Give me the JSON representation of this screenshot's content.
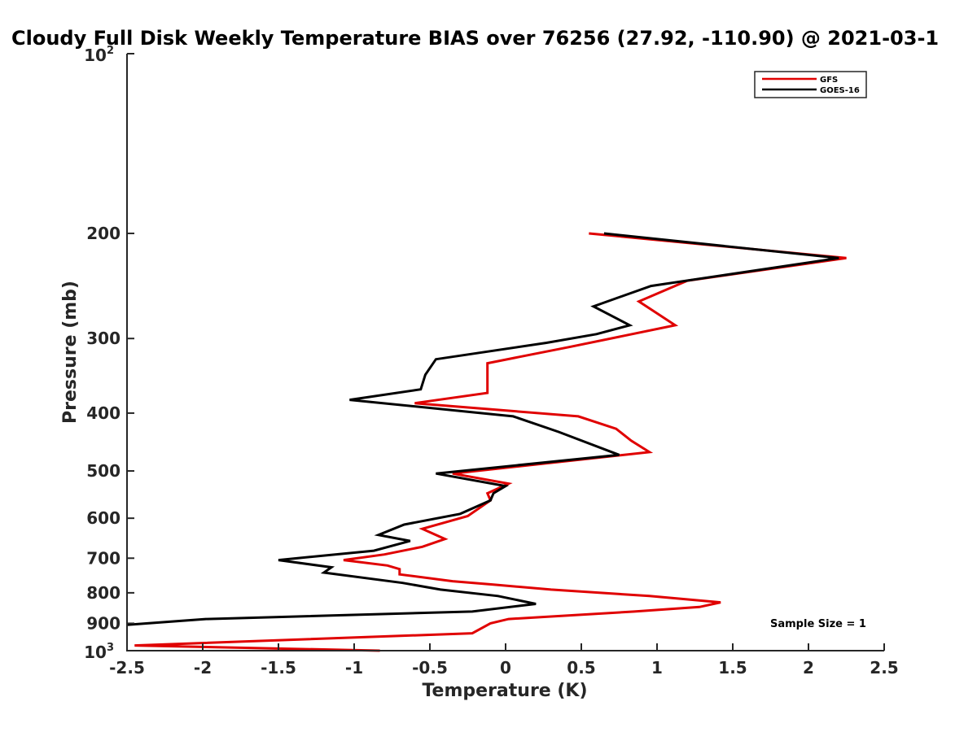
{
  "chart_data": {
    "type": "line",
    "title": "Cloudy Full Disk Weekly Temperature BIAS over 76256 (27.92, -110.90) @ 2021-03-1",
    "xlabel": "Temperature (K)",
    "ylabel": "Pressure (mb)",
    "xlim": [
      -2.5,
      2.5
    ],
    "ylim": [
      100,
      1000
    ],
    "yscale": "log",
    "yreversed": true,
    "xticks": [
      -2.5,
      -2,
      -1.5,
      -1,
      -0.5,
      0,
      0.5,
      1,
      1.5,
      2,
      2.5
    ],
    "xtick_labels": [
      "-2.5",
      "-2",
      "-1.5",
      "-1",
      "-0.5",
      "0",
      "0.5",
      "1",
      "1.5",
      "2",
      "2.5"
    ],
    "yticks": [
      200,
      300,
      400,
      500,
      600,
      700,
      800,
      900
    ],
    "ytick_labels": [
      "200",
      "300",
      "400",
      "500",
      "600",
      "700",
      "800",
      "900"
    ],
    "ytick_top": {
      "base": "10",
      "exp": "2"
    },
    "ytick_bottom": {
      "base": "10",
      "exp": "3"
    },
    "legend_position": "top-right",
    "annotation": "Sample Size = 1",
    "series": [
      {
        "name": "GFS",
        "color": "#e00000",
        "points": [
          [
            0.55,
            200
          ],
          [
            2.25,
            220
          ],
          [
            1.2,
            240
          ],
          [
            0.88,
            260
          ],
          [
            1.12,
            285
          ],
          [
            0.42,
            310
          ],
          [
            -0.12,
            330
          ],
          [
            -0.12,
            370
          ],
          [
            -0.6,
            385
          ],
          [
            0.48,
            405
          ],
          [
            0.73,
            425
          ],
          [
            0.83,
            445
          ],
          [
            0.95,
            465
          ],
          [
            -0.35,
            505
          ],
          [
            0.02,
            525
          ],
          [
            -0.12,
            545
          ],
          [
            -0.1,
            560
          ],
          [
            -0.25,
            595
          ],
          [
            -0.55,
            625
          ],
          [
            -0.4,
            650
          ],
          [
            -0.55,
            670
          ],
          [
            -0.8,
            690
          ],
          [
            -1.07,
            705
          ],
          [
            -0.78,
            720
          ],
          [
            -0.7,
            730
          ],
          [
            -0.7,
            745
          ],
          [
            -0.35,
            765
          ],
          [
            -0.08,
            775
          ],
          [
            0.3,
            790
          ],
          [
            0.95,
            810
          ],
          [
            1.42,
            830
          ],
          [
            1.28,
            845
          ],
          [
            0.85,
            860
          ],
          [
            0.02,
            885
          ],
          [
            -0.1,
            900
          ],
          [
            -0.22,
            935
          ],
          [
            -2.45,
            980
          ],
          [
            -0.83,
            1000
          ]
        ]
      },
      {
        "name": "GOES-16",
        "color": "#000000",
        "points": [
          [
            0.65,
            200
          ],
          [
            2.2,
            220
          ],
          [
            0.96,
            245
          ],
          [
            0.58,
            265
          ],
          [
            0.82,
            285
          ],
          [
            0.6,
            295
          ],
          [
            0.27,
            305
          ],
          [
            -0.46,
            325
          ],
          [
            -0.53,
            345
          ],
          [
            -0.56,
            365
          ],
          [
            -1.03,
            380
          ],
          [
            0.05,
            405
          ],
          [
            0.35,
            430
          ],
          [
            0.75,
            470
          ],
          [
            -0.46,
            505
          ],
          [
            0.0,
            530
          ],
          [
            -0.08,
            545
          ],
          [
            -0.1,
            560
          ],
          [
            -0.3,
            590
          ],
          [
            -0.67,
            615
          ],
          [
            -0.84,
            640
          ],
          [
            -0.63,
            655
          ],
          [
            -0.87,
            680
          ],
          [
            -1.5,
            705
          ],
          [
            -1.15,
            725
          ],
          [
            -1.2,
            740
          ],
          [
            -0.68,
            770
          ],
          [
            -0.43,
            790
          ],
          [
            -0.05,
            810
          ],
          [
            0.2,
            835
          ],
          [
            -0.22,
            860
          ],
          [
            -1.98,
            885
          ],
          [
            -2.5,
            905
          ]
        ]
      }
    ]
  }
}
